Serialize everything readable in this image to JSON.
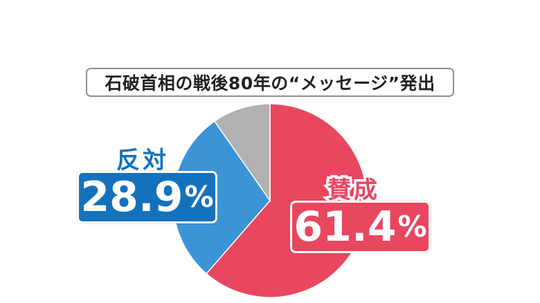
{
  "title": "石破首相の戦後80年の“メッセージ”発出",
  "colors": {
    "approve": "#e8475f",
    "oppose": "#3b94d6",
    "oppose_box": "#1472bd",
    "other": "#b2b2b2"
  },
  "labels": {
    "approve": {
      "category": "賛成",
      "number": "61.4",
      "unit": "%"
    },
    "oppose": {
      "category": "反対",
      "number": "28.9",
      "unit": "%"
    }
  },
  "chart_data": {
    "type": "pie",
    "title": "石破首相の戦後80年の“メッセージ”発出",
    "start": "12 o'clock",
    "direction": "clockwise",
    "slices": [
      {
        "label": "賛成",
        "value": 61.4,
        "color": "#e8475f"
      },
      {
        "label": "反対",
        "value": 28.9,
        "color": "#3b94d6"
      },
      {
        "label": "",
        "value": 9.7,
        "color": "#b2b2b2"
      }
    ]
  }
}
